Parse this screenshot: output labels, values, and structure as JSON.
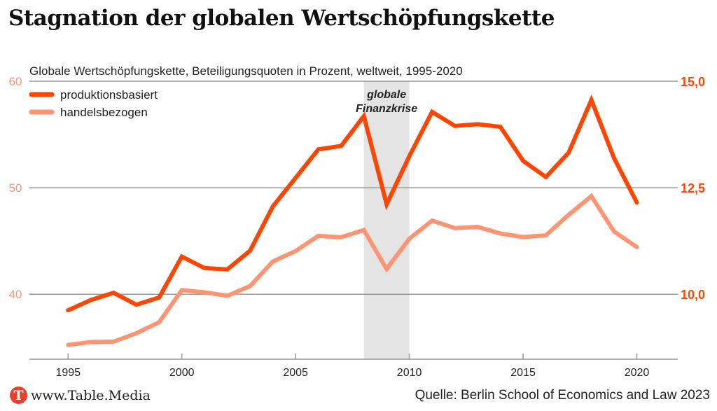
{
  "title": "Stagnation der globalen Wertschöpfungskette",
  "footer": {
    "logo_letter": "T",
    "site": "www.Table.Media",
    "source": "Quelle: Berlin School of Economics and Law 2023"
  },
  "chart_data": {
    "type": "line",
    "subtitle": "Globale Wertschöpfungskette,  Beteiligungsquoten in Prozent, weltweit, 1995-2020",
    "x": [
      1995,
      1996,
      1997,
      1998,
      1999,
      2000,
      2001,
      2002,
      2003,
      2004,
      2005,
      2006,
      2007,
      2008,
      2009,
      2010,
      2011,
      2012,
      2013,
      2014,
      2015,
      2016,
      2017,
      2018,
      2019,
      2020
    ],
    "xlim": [
      1993.3,
      2021.8
    ],
    "x_ticks": [
      1995,
      2000,
      2005,
      2010,
      2015,
      2020
    ],
    "y_left": {
      "lim": [
        33.9,
        60
      ],
      "ticks": [
        40,
        50,
        60
      ],
      "tick_labels": [
        "40",
        "50",
        "60"
      ],
      "color": "#ff9473"
    },
    "y_right": {
      "lim": [
        8.47,
        15.0
      ],
      "ticks": [
        10,
        12.5,
        15
      ],
      "tick_labels": [
        "10,0",
        "12,5",
        "15,0"
      ],
      "color": "#ff4500"
    },
    "grid": "horizontal",
    "legend_position": "top-left",
    "series": [
      {
        "name": "produktionsbasiert",
        "axis": "right",
        "color": "#ff4500",
        "values": [
          9.62,
          9.86,
          10.03,
          9.75,
          9.92,
          10.88,
          10.61,
          10.58,
          11.02,
          12.06,
          12.73,
          13.4,
          13.48,
          14.18,
          12.11,
          13.24,
          14.28,
          13.95,
          13.99,
          13.93,
          13.13,
          12.75,
          13.32,
          14.56,
          13.19,
          12.15
        ]
      },
      {
        "name": "handelsbezogen",
        "axis": "left",
        "color": "#ff9473",
        "values": [
          35.24,
          35.51,
          35.55,
          36.34,
          37.37,
          40.39,
          40.18,
          39.85,
          40.77,
          43.07,
          44.06,
          45.48,
          45.35,
          46.03,
          42.37,
          45.22,
          46.91,
          46.21,
          46.32,
          45.7,
          45.37,
          45.53,
          47.46,
          49.21,
          45.88,
          44.43
        ]
      }
    ],
    "annotations": [
      {
        "label_line1": "globale",
        "label_line2": "Finanzkrise",
        "x_range": [
          2008,
          2010
        ],
        "color": "#e4e4e4"
      }
    ]
  }
}
